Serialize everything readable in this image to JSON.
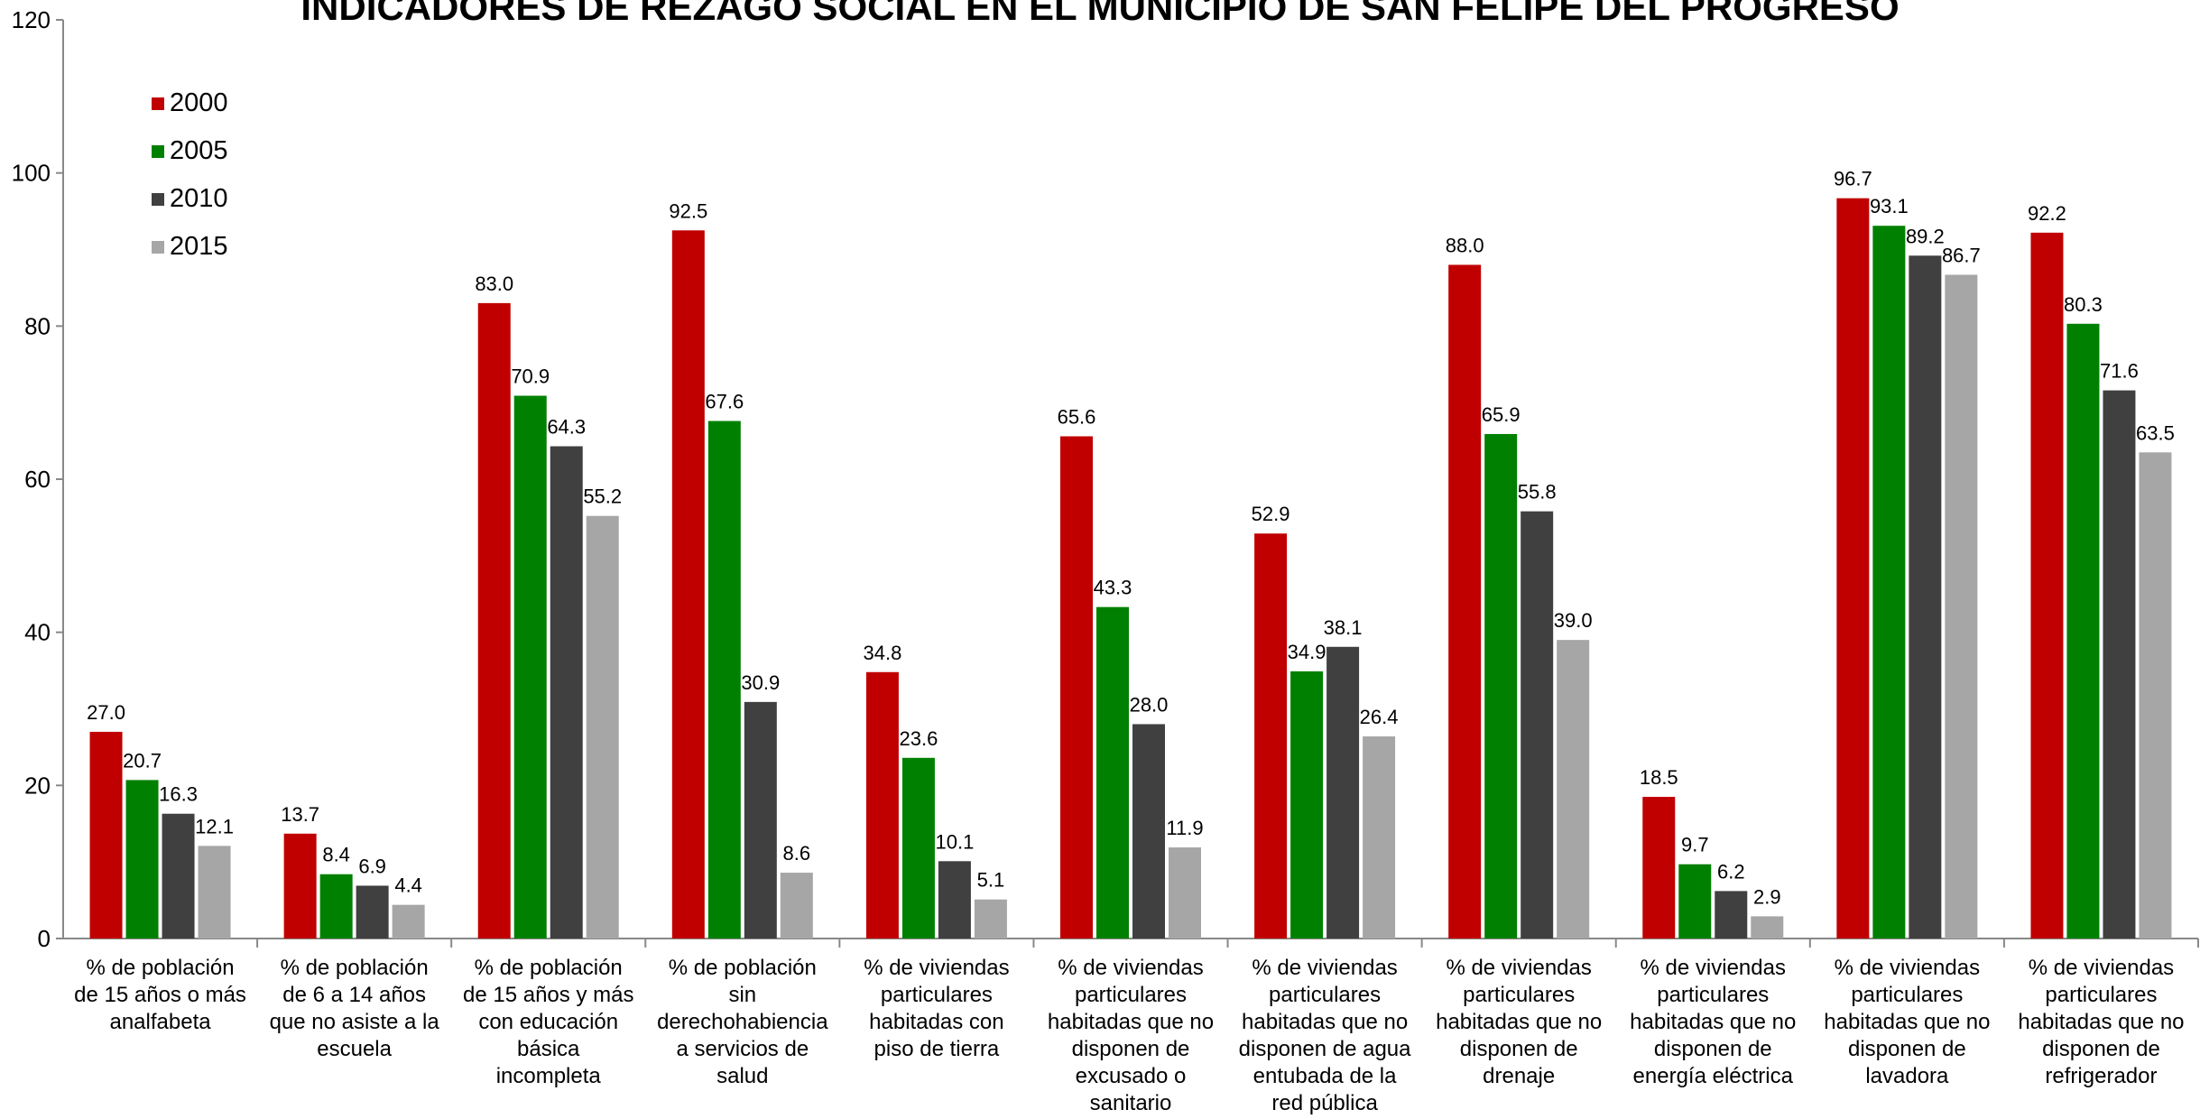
{
  "chart_data": {
    "type": "bar",
    "title": "INDICADORES DE REZAGO SOCIAL EN EL MUNICIPIO DE SAN FELIPE DEL PROGRESO",
    "xlabel": "",
    "ylabel": "",
    "ylim": [
      0,
      120
    ],
    "yticks": [
      0,
      20,
      40,
      60,
      80,
      100,
      120
    ],
    "grid": false,
    "legend_position": "top-left",
    "categories": [
      [
        "% de población",
        "de 15 años o más",
        "analfabeta"
      ],
      [
        "% de población",
        "de 6 a 14 años",
        "que no asiste a la",
        "escuela"
      ],
      [
        "% de población",
        "de 15 años y más",
        "con educación",
        "básica",
        "incompleta"
      ],
      [
        "% de población",
        "sin",
        "derechohabiencia",
        "a servicios de",
        "salud"
      ],
      [
        "% de viviendas",
        "particulares",
        "habitadas con",
        "piso de tierra"
      ],
      [
        "% de viviendas",
        "particulares",
        "habitadas que no",
        "disponen de",
        "excusado o",
        "sanitario"
      ],
      [
        "% de viviendas",
        "particulares",
        "habitadas que no",
        "disponen de agua",
        "entubada de la",
        "red pública"
      ],
      [
        "% de viviendas",
        "particulares",
        "habitadas que no",
        "disponen de",
        "drenaje"
      ],
      [
        "% de viviendas",
        "particulares",
        "habitadas que no",
        "disponen de",
        "energía eléctrica"
      ],
      [
        "% de viviendas",
        "particulares",
        "habitadas que no",
        "disponen de",
        "lavadora"
      ],
      [
        "% de viviendas",
        "particulares",
        "habitadas que no",
        "disponen de",
        "refrigerador"
      ]
    ],
    "series": [
      {
        "name": "2000",
        "color": "#c00000",
        "values": [
          27.0,
          13.7,
          83.0,
          92.5,
          34.8,
          65.6,
          52.9,
          88.0,
          18.5,
          96.7,
          92.2
        ]
      },
      {
        "name": "2005",
        "color": "#008000",
        "values": [
          20.7,
          8.4,
          70.9,
          67.6,
          23.6,
          43.3,
          34.9,
          65.9,
          9.7,
          93.1,
          80.3
        ]
      },
      {
        "name": "2010",
        "color": "#404040",
        "values": [
          16.3,
          6.9,
          64.3,
          30.9,
          10.1,
          28.0,
          38.1,
          55.8,
          6.2,
          89.2,
          71.6
        ]
      },
      {
        "name": "2015",
        "color": "#a6a6a6",
        "values": [
          12.1,
          4.4,
          55.2,
          8.6,
          5.1,
          11.9,
          26.4,
          39.0,
          2.9,
          86.7,
          63.5
        ]
      }
    ]
  }
}
